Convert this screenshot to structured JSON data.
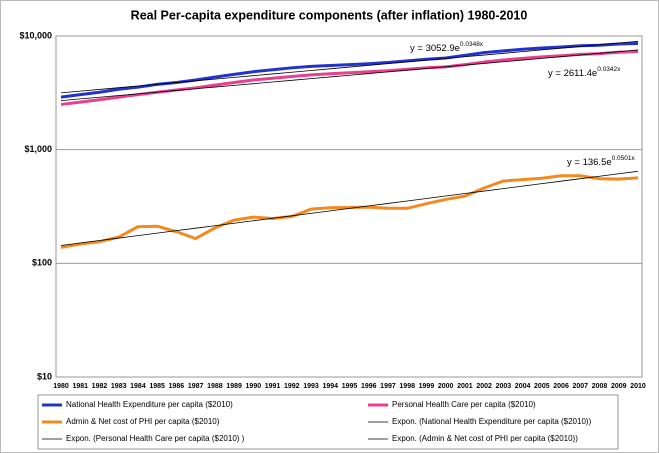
{
  "chart_data": {
    "type": "line",
    "title": "Real Per-capita expenditure components (after inflation) 1980-2010",
    "log_scale": true,
    "grid": true,
    "x": [
      1980,
      1981,
      1982,
      1983,
      1984,
      1985,
      1986,
      1987,
      1988,
      1989,
      1990,
      1991,
      1992,
      1993,
      1994,
      1995,
      1996,
      1997,
      1998,
      1999,
      2000,
      2001,
      2002,
      2003,
      2004,
      2005,
      2006,
      2007,
      2008,
      2009,
      2010
    ],
    "xlim": [
      1980,
      2010
    ],
    "ylim": [
      10,
      10000
    ],
    "yticks": [
      {
        "value": 10,
        "label": "$10"
      },
      {
        "value": 100,
        "label": "$100"
      },
      {
        "value": 1000,
        "label": "$1,000"
      },
      {
        "value": 10000,
        "label": "$10,000"
      }
    ],
    "series": [
      {
        "name": "National Health Expenditure per capita ($2010)",
        "color": "#2233cc",
        "width": 3,
        "values": [
          2900,
          3050,
          3200,
          3400,
          3550,
          3750,
          3900,
          4100,
          4350,
          4600,
          4850,
          5050,
          5250,
          5400,
          5500,
          5600,
          5700,
          5850,
          6050,
          6250,
          6400,
          6750,
          7150,
          7400,
          7650,
          7850,
          8000,
          8200,
          8300,
          8500,
          8600
        ]
      },
      {
        "name": "Personal Health Care per capita ($2010)",
        "color": "#e8408f",
        "width": 3,
        "values": [
          2500,
          2620,
          2750,
          2900,
          3050,
          3200,
          3350,
          3500,
          3700,
          3900,
          4100,
          4250,
          4400,
          4550,
          4650,
          4750,
          4850,
          4950,
          5100,
          5250,
          5350,
          5600,
          5900,
          6150,
          6350,
          6550,
          6700,
          6900,
          7000,
          7200,
          7300
        ]
      },
      {
        "name": "Admin & Net cost of PHI per capita ($2010)",
        "color": "#f28a1e",
        "width": 3,
        "values": [
          138,
          148,
          155,
          170,
          210,
          212,
          190,
          165,
          205,
          240,
          255,
          248,
          258,
          300,
          308,
          310,
          312,
          305,
          305,
          335,
          365,
          390,
          460,
          530,
          545,
          560,
          590,
          590,
          555,
          550,
          565
        ]
      },
      {
        "name": "Expon. (National Health Expenditure per capita ($2010))",
        "color": "#000000",
        "width": 0.8,
        "values": [
          3161,
          3273,
          3389,
          3509,
          3633,
          3762,
          3895,
          4033,
          4176,
          4324,
          4477,
          4636,
          4800,
          4970,
          5146,
          5328,
          5517,
          5712,
          5914,
          6124,
          6341,
          6565,
          6798,
          7039,
          7288,
          7546,
          7813,
          8090,
          8377,
          8673,
          8980
        ]
      },
      {
        "name": "Expon. (Personal Health Care per capita ($2010) )",
        "color": "#000000",
        "width": 0.8,
        "values": [
          2702,
          2796,
          2893,
          2994,
          3098,
          3206,
          3318,
          3433,
          3553,
          3676,
          3804,
          3937,
          4074,
          4216,
          4362,
          4514,
          4671,
          4834,
          5002,
          5176,
          5356,
          5543,
          5736,
          5935,
          6142,
          6356,
          6577,
          6806,
          7043,
          7288,
          7542
        ]
      },
      {
        "name": "Expon. (Admin & Net cost of PHI per capita ($2010))",
        "color": "#000000",
        "width": 0.8,
        "values": [
          143.5,
          150.9,
          158.7,
          166.8,
          175.4,
          184.4,
          193.9,
          203.8,
          214.3,
          225.3,
          236.9,
          249.1,
          261.9,
          275.3,
          289.5,
          304.4,
          320.0,
          336.5,
          353.8,
          372.0,
          391.1,
          411.2,
          432.3,
          454.5,
          477.9,
          502.4,
          528.3,
          555.4,
          584.0,
          614.0,
          645.5
        ]
      }
    ],
    "annotations": [
      {
        "text": "y = 3052.9e",
        "exponent": "0.0348x"
      },
      {
        "text": "y = 2611.4e",
        "exponent": "0.0342x"
      },
      {
        "text": "y = 136.5e",
        "exponent": "0.0501x"
      }
    ]
  }
}
